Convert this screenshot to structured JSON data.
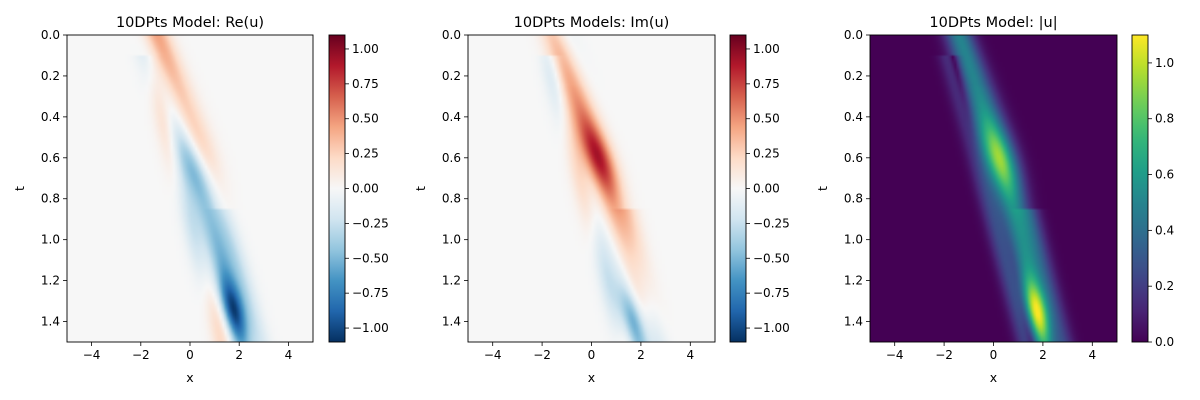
{
  "chart_data": [
    {
      "type": "heatmap",
      "title": "10DPts Model: Re(u)",
      "xlabel": "x",
      "ylabel": "t",
      "xlim": [
        -5,
        5
      ],
      "ylim": [
        1.5,
        0
      ],
      "xticks": [
        -4,
        -2,
        0,
        2,
        4
      ],
      "yticks": [
        0.0,
        0.2,
        0.4,
        0.6,
        0.8,
        1.0,
        1.2,
        1.4
      ],
      "colormap": "RdBu_r",
      "colorbar": {
        "range": [
          -1.1,
          1.1
        ],
        "ticks": [
          -1.0,
          -0.75,
          -0.5,
          -0.25,
          0.0,
          0.25,
          0.5,
          0.75,
          1.0
        ],
        "tick_labels": [
          "−1.00",
          "−0.75",
          "−0.50",
          "−0.25",
          "0.00",
          "0.25",
          "0.50",
          "0.75",
          "1.00"
        ]
      },
      "component": "real"
    },
    {
      "type": "heatmap",
      "title": "10DPts Models: Im(u)",
      "xlabel": "x",
      "ylabel": "t",
      "xlim": [
        -5,
        5
      ],
      "ylim": [
        1.5,
        0
      ],
      "xticks": [
        -4,
        -2,
        0,
        2,
        4
      ],
      "yticks": [
        0.0,
        0.2,
        0.4,
        0.6,
        0.8,
        1.0,
        1.2,
        1.4
      ],
      "colormap": "RdBu_r",
      "colorbar": {
        "range": [
          -1.1,
          1.1
        ],
        "ticks": [
          -1.0,
          -0.75,
          -0.5,
          -0.25,
          0.0,
          0.25,
          0.5,
          0.75,
          1.0
        ],
        "tick_labels": [
          "−1.00",
          "−0.75",
          "−0.50",
          "−0.25",
          "0.00",
          "0.25",
          "0.50",
          "0.75",
          "1.00"
        ]
      },
      "component": "imag"
    },
    {
      "type": "heatmap",
      "title": "10DPts Model: |u|",
      "xlabel": "x",
      "ylabel": "t",
      "xlim": [
        -5,
        5
      ],
      "ylim": [
        1.5,
        0
      ],
      "xticks": [
        -4,
        -2,
        0,
        2,
        4
      ],
      "yticks": [
        0.0,
        0.2,
        0.4,
        0.6,
        0.8,
        1.0,
        1.2,
        1.4
      ],
      "colormap": "viridis",
      "colorbar": {
        "range": [
          0,
          1.1
        ],
        "ticks": [
          0.0,
          0.2,
          0.4,
          0.6,
          0.8,
          1.0
        ],
        "tick_labels": [
          "0.0",
          "0.2",
          "0.4",
          "0.6",
          "0.8",
          "1.0"
        ]
      },
      "component": "abs"
    }
  ]
}
